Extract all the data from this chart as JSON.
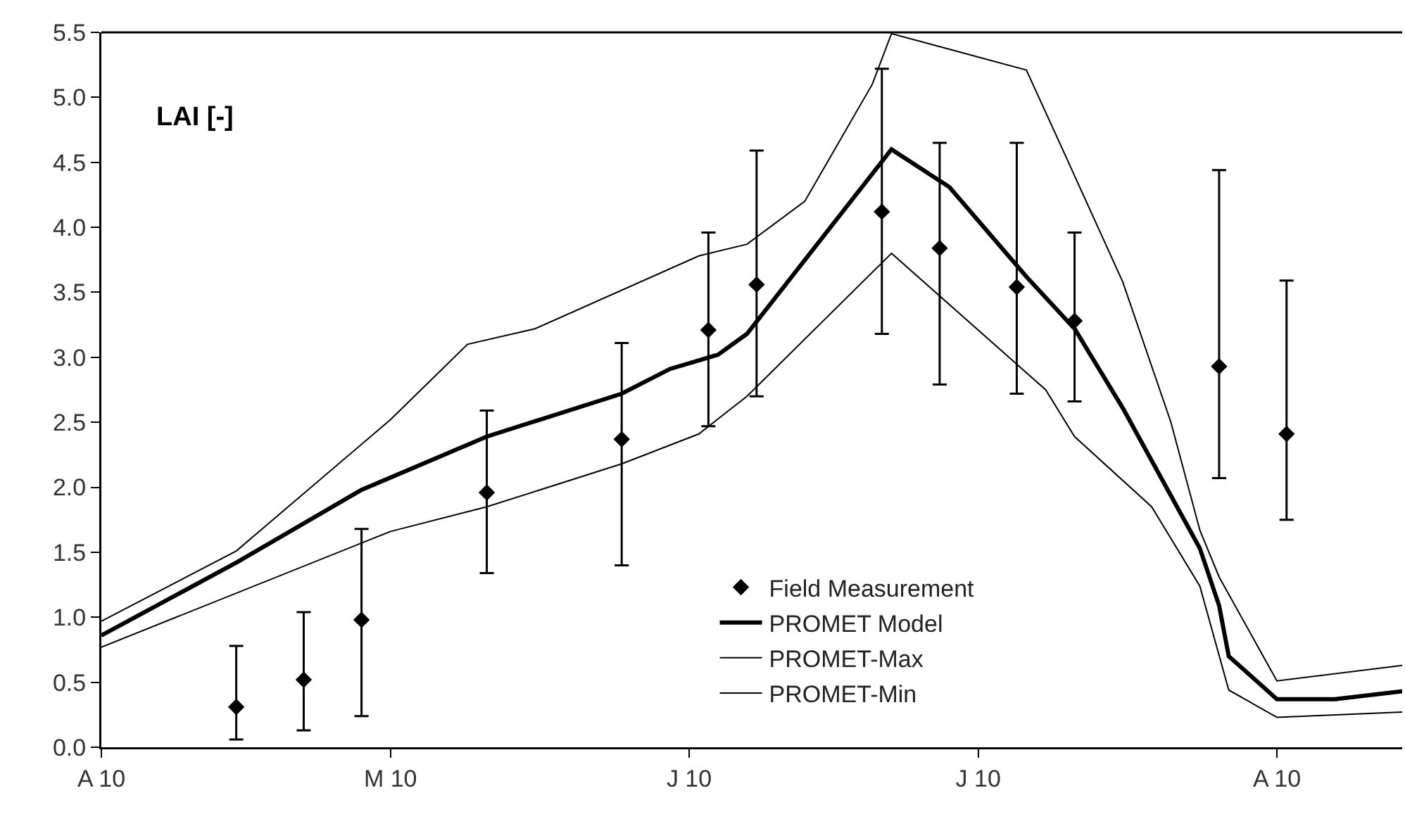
{
  "chart_data": {
    "type": "line",
    "ylabel": "LAI [-]",
    "xlim": [
      "2010-04-01",
      "2010-08-14"
    ],
    "xticks": [
      {
        "value": "2010-04-01",
        "label": "A 10"
      },
      {
        "value": "2010-05-01",
        "label": "M 10"
      },
      {
        "value": "2010-06-01",
        "label": "J 10"
      },
      {
        "value": "2010-07-01",
        "label": "J 10"
      },
      {
        "value": "2010-08-01",
        "label": "A 10"
      }
    ],
    "ylim": [
      0,
      5.5
    ],
    "yticks": [
      {
        "value": 0,
        "label": "0.0"
      },
      {
        "value": 0.5,
        "label": "0.5"
      },
      {
        "value": 1,
        "label": "1.0"
      },
      {
        "value": 1.5,
        "label": "1.5"
      },
      {
        "value": 2,
        "label": "2.0"
      },
      {
        "value": 2.5,
        "label": "2.5"
      },
      {
        "value": 3,
        "label": "3.0"
      },
      {
        "value": 3.5,
        "label": "3.5"
      },
      {
        "value": 4,
        "label": "4.0"
      },
      {
        "value": 4.5,
        "label": "4.5"
      },
      {
        "value": 5,
        "label": "5.0"
      },
      {
        "value": 5.5,
        "label": "5.5"
      }
    ],
    "grid": false,
    "legend": "bottom right",
    "series": [
      {
        "name": "Field Measurement",
        "type": "scatter",
        "marker": "diamond",
        "color": "#000000",
        "x": [
          "2010-04-15",
          "2010-04-22",
          "2010-04-28",
          "2010-05-11",
          "2010-05-25",
          "2010-06-03",
          "2010-06-08",
          "2010-06-21",
          "2010-06-27",
          "2010-07-05",
          "2010-07-11",
          "2010-07-26",
          "2010-08-02"
        ],
        "values": [
          0.31,
          0.52,
          0.98,
          1.96,
          2.37,
          3.21,
          3.56,
          4.12,
          3.84,
          3.54,
          3.28,
          2.93,
          2.41
        ],
        "errors": [
          [
            0.06,
            0.78
          ],
          [
            0.13,
            1.04
          ],
          [
            0.24,
            1.68
          ],
          [
            1.34,
            2.59
          ],
          [
            1.4,
            3.11
          ],
          [
            2.47,
            3.96
          ],
          [
            2.7,
            4.59
          ],
          [
            3.18,
            5.22
          ],
          [
            2.79,
            4.65
          ],
          [
            2.72,
            4.65
          ],
          [
            2.66,
            3.96
          ],
          [
            2.07,
            4.44
          ],
          [
            1.75,
            3.59
          ]
        ]
      },
      {
        "name": "PROMET Model",
        "line_style": "solid",
        "color": "#000000",
        "x": [
          "2010-04-01",
          "2010-04-15",
          "2010-04-28",
          "2010-05-11",
          "2010-05-25",
          "2010-05-30",
          "2010-06-04",
          "2010-06-07",
          "2010-06-22",
          "2010-06-28",
          "2010-07-06",
          "2010-07-11",
          "2010-07-16",
          "2010-07-24",
          "2010-07-26",
          "2010-07-27",
          "2010-08-01",
          "2010-08-07",
          "2010-08-14"
        ],
        "values": [
          0.86,
          1.42,
          1.98,
          2.39,
          2.72,
          2.91,
          3.02,
          3.18,
          4.6,
          4.31,
          3.62,
          3.22,
          2.61,
          1.53,
          1.09,
          0.7,
          0.37,
          0.37,
          0.43
        ]
      },
      {
        "name": "PROMET-Max",
        "line_style": "solid",
        "color": "#000000",
        "x": [
          "2010-04-01",
          "2010-04-15",
          "2010-05-01",
          "2010-05-09",
          "2010-05-16",
          "2010-06-02",
          "2010-06-07",
          "2010-06-13",
          "2010-06-20",
          "2010-06-22",
          "2010-06-27",
          "2010-07-06",
          "2010-07-10",
          "2010-07-16",
          "2010-07-21",
          "2010-07-24",
          "2010-07-26",
          "2010-08-01",
          "2010-08-14"
        ],
        "values": [
          0.97,
          1.51,
          2.52,
          3.1,
          3.22,
          3.78,
          3.87,
          4.2,
          5.1,
          5.49,
          5.39,
          5.21,
          4.56,
          3.58,
          2.5,
          1.67,
          1.31,
          0.51,
          0.63
        ]
      },
      {
        "name": "PROMET-Min",
        "line_style": "solid",
        "color": "#000000",
        "x": [
          "2010-04-01",
          "2010-05-01",
          "2010-05-11",
          "2010-05-25",
          "2010-06-02",
          "2010-06-07",
          "2010-06-22",
          "2010-07-08",
          "2010-07-11",
          "2010-07-19",
          "2010-07-24",
          "2010-07-27",
          "2010-08-01",
          "2010-08-14"
        ],
        "values": [
          0.77,
          1.66,
          1.85,
          2.18,
          2.41,
          2.7,
          3.8,
          2.75,
          2.39,
          1.85,
          1.24,
          0.44,
          0.23,
          0.27
        ]
      }
    ]
  }
}
